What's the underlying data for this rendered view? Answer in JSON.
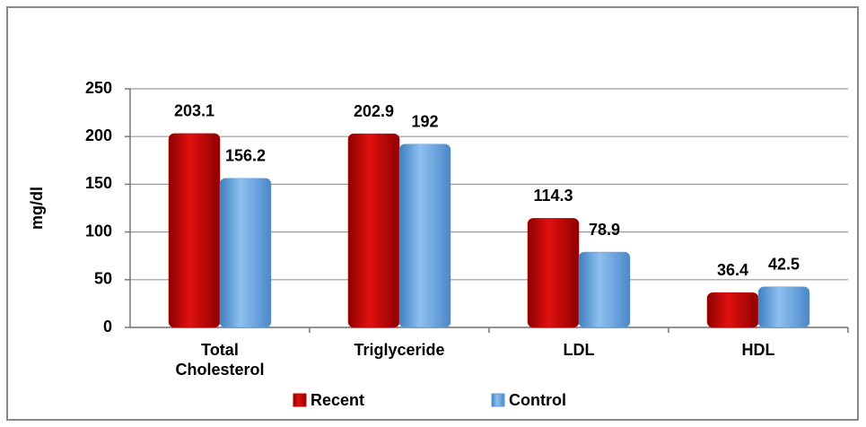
{
  "chart_data": {
    "type": "bar",
    "y_label": "mg/dl",
    "categories": [
      "Total Cholesterol",
      "Triglyceride",
      "LDL",
      "HDL"
    ],
    "series": [
      {
        "name": "Recent",
        "color": "#c00000",
        "values": [
          203.1,
          202.9,
          114.3,
          36.4
        ]
      },
      {
        "name": "Control",
        "color": "#5b9bd5",
        "values": [
          156.2,
          192,
          78.9,
          42.5
        ]
      }
    ],
    "ylim": [
      0,
      250
    ],
    "yticks": [
      0,
      50,
      100,
      150,
      200,
      250
    ],
    "grid": true,
    "legend": "bottom"
  }
}
